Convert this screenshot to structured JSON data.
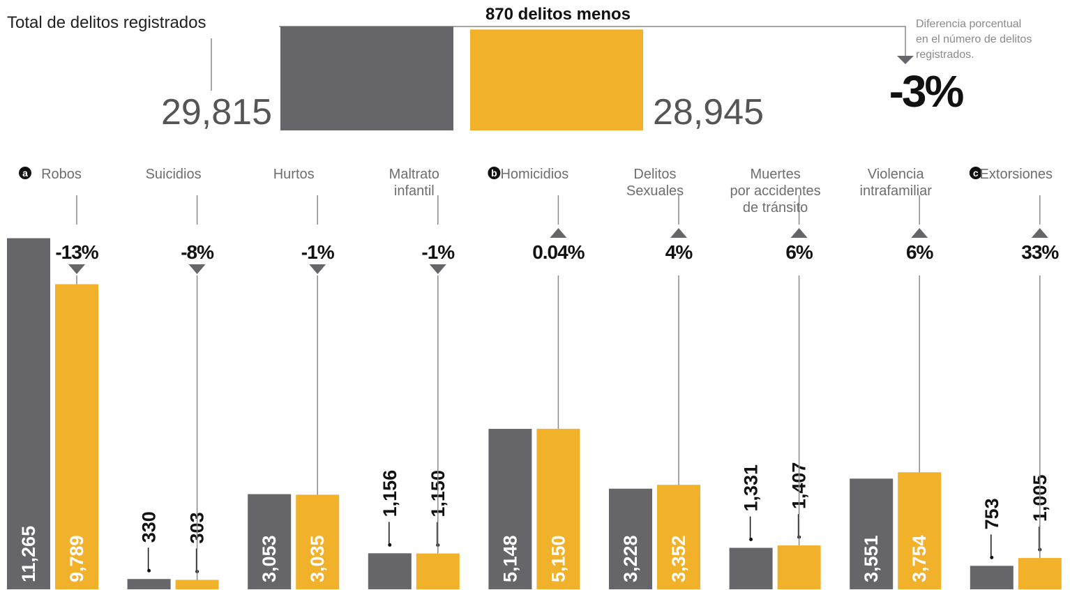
{
  "chart_data": [
    {
      "type": "bar",
      "title": "Total de delitos registrados",
      "annotation": "870 delitos menos",
      "values": [
        29815,
        28945
      ],
      "value_labels": [
        "29,815",
        "28,945"
      ],
      "colors": [
        "#666569",
        "#f2b12b"
      ],
      "ylim": [
        0,
        30000
      ],
      "note": "Diferencia porcentual\nen el número de delitos\nregistrados.",
      "change": -3,
      "change_label": "-3%"
    },
    {
      "type": "bar",
      "categories": [
        "Robos",
        "Suicidios",
        "Hurtos",
        "Maltrato\ninfantil",
        "Homicidios",
        "Delitos\nSexuales",
        "Muertes\npor accidentes\nde tránsito",
        "Violencia\nintrafamiliar",
        "Extorsiones"
      ],
      "markers": [
        "a",
        null,
        null,
        null,
        "b",
        null,
        null,
        null,
        "c"
      ],
      "series": [
        {
          "color": "#666569",
          "values": [
            11265,
            330,
            3053,
            1156,
            5148,
            3228,
            1331,
            3551,
            753
          ],
          "value_labels": [
            "11,265",
            "330",
            "3,053",
            "1,156",
            "5,148",
            "3,228",
            "1,331",
            "3,551",
            "753"
          ]
        },
        {
          "color": "#f2b12b",
          "values": [
            9789,
            303,
            3035,
            1150,
            5150,
            3352,
            1407,
            3754,
            1005
          ],
          "value_labels": [
            "9,789",
            "303",
            "3,035",
            "1,150",
            "5,150",
            "3,352",
            "1,407",
            "3,754",
            "1,005"
          ]
        }
      ],
      "changes": [
        -13,
        -8,
        -1,
        -1,
        0.04,
        4,
        6,
        6,
        33
      ],
      "change_labels": [
        "-13%",
        "-8%",
        "-1%",
        "-1%",
        "0.04%",
        "4%",
        "6%",
        "6%",
        "33%"
      ],
      "ylim": [
        0,
        11300
      ]
    }
  ]
}
